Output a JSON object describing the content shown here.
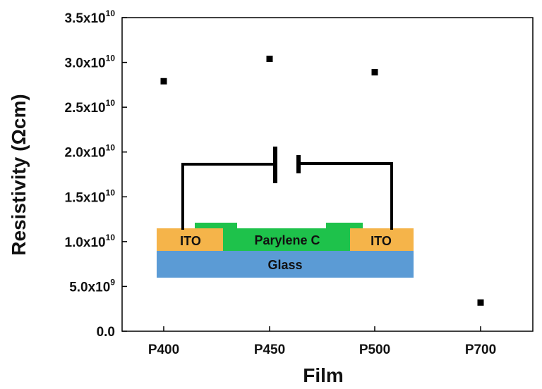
{
  "chart_data": {
    "type": "scatter",
    "xlabel": "Film",
    "ylabel": "Resistivity (Ωcm)",
    "categories": [
      "P400",
      "P450",
      "P500",
      "P700"
    ],
    "values": [
      27900000000.0,
      30400000000.0,
      28900000000.0,
      3200000000.0
    ],
    "ylim": [
      0,
      35000000000.0
    ],
    "y_ticks": [
      {
        "value": 0,
        "mant": "0.0",
        "exp": ""
      },
      {
        "value": 5000000000.0,
        "mant": "5.0x10",
        "exp": "9"
      },
      {
        "value": 10000000000.0,
        "mant": "1.0x10",
        "exp": "10"
      },
      {
        "value": 15000000000.0,
        "mant": "1.5x10",
        "exp": "10"
      },
      {
        "value": 20000000000.0,
        "mant": "2.0x10",
        "exp": "10"
      },
      {
        "value": 25000000000.0,
        "mant": "2.5x10",
        "exp": "10"
      },
      {
        "value": 30000000000.0,
        "mant": "3.0x10",
        "exp": "10"
      },
      {
        "value": 35000000000.0,
        "mant": "3.5x10",
        "exp": "10"
      }
    ],
    "grid": false,
    "legend": "none",
    "marker_color": "#000000"
  },
  "inset": {
    "layers": {
      "ito_left": "ITO",
      "parylene": "Parylene C",
      "ito_right": "ITO",
      "glass": "Glass"
    },
    "colors": {
      "ito": "#f5b44a",
      "parylene": "#1ec24b",
      "glass": "#5b9bd5",
      "wire": "#000000"
    }
  }
}
